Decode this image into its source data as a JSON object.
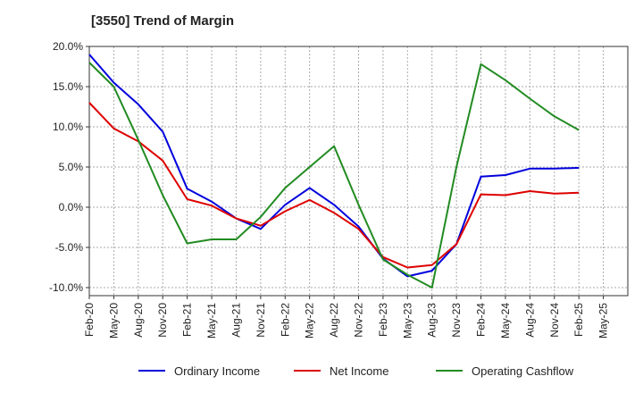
{
  "title": "[3550]  Trend of Margin",
  "chart_data": {
    "type": "line",
    "title": "[3550]  Trend of Margin",
    "xlabel": "",
    "ylabel": "",
    "x": [
      "Feb-20",
      "May-20",
      "Aug-20",
      "Nov-20",
      "Feb-21",
      "May-21",
      "Aug-21",
      "Nov-21",
      "Feb-22",
      "May-22",
      "Aug-22",
      "Nov-22",
      "Feb-23",
      "May-23",
      "Aug-23",
      "Nov-23",
      "Feb-24",
      "May-24",
      "Aug-24",
      "Nov-24",
      "Feb-25",
      "May-25"
    ],
    "ylim": [
      -11,
      20
    ],
    "yticks": [
      20,
      15,
      10,
      5,
      0,
      -5,
      -10
    ],
    "ytick_labels": [
      "20.0%",
      "15.0%",
      "10.0%",
      "5.0%",
      "0.0%",
      "-5.0%",
      "-10.0%"
    ],
    "grid": true,
    "legend_position": "bottom",
    "series": [
      {
        "name": "Ordinary Income",
        "color": "#0000dd",
        "values": [
          19.0,
          15.5,
          12.8,
          9.4,
          2.3,
          0.7,
          -1.4,
          -2.7,
          0.3,
          2.4,
          0.3,
          -2.4,
          -6.4,
          -8.6,
          -7.9,
          -4.6,
          3.8,
          4.0,
          4.8,
          4.8,
          4.9,
          null
        ]
      },
      {
        "name": "Net Income",
        "color": "#dd0000",
        "values": [
          13.0,
          9.8,
          8.2,
          5.8,
          1.0,
          0.2,
          -1.4,
          -2.3,
          -0.5,
          0.9,
          -0.7,
          -2.7,
          -6.2,
          -7.5,
          -7.2,
          -4.6,
          1.6,
          1.5,
          2.0,
          1.7,
          1.8,
          null
        ]
      },
      {
        "name": "Operating Cashflow",
        "color": "#228b22",
        "values": [
          18.0,
          15.0,
          8.4,
          1.5,
          -4.5,
          -4.0,
          -4.0,
          -1.2,
          2.4,
          5.0,
          7.6,
          0.3,
          -6.5,
          -8.4,
          -10.0,
          5.0,
          17.8,
          15.8,
          13.5,
          11.3,
          9.6,
          null
        ]
      }
    ]
  }
}
